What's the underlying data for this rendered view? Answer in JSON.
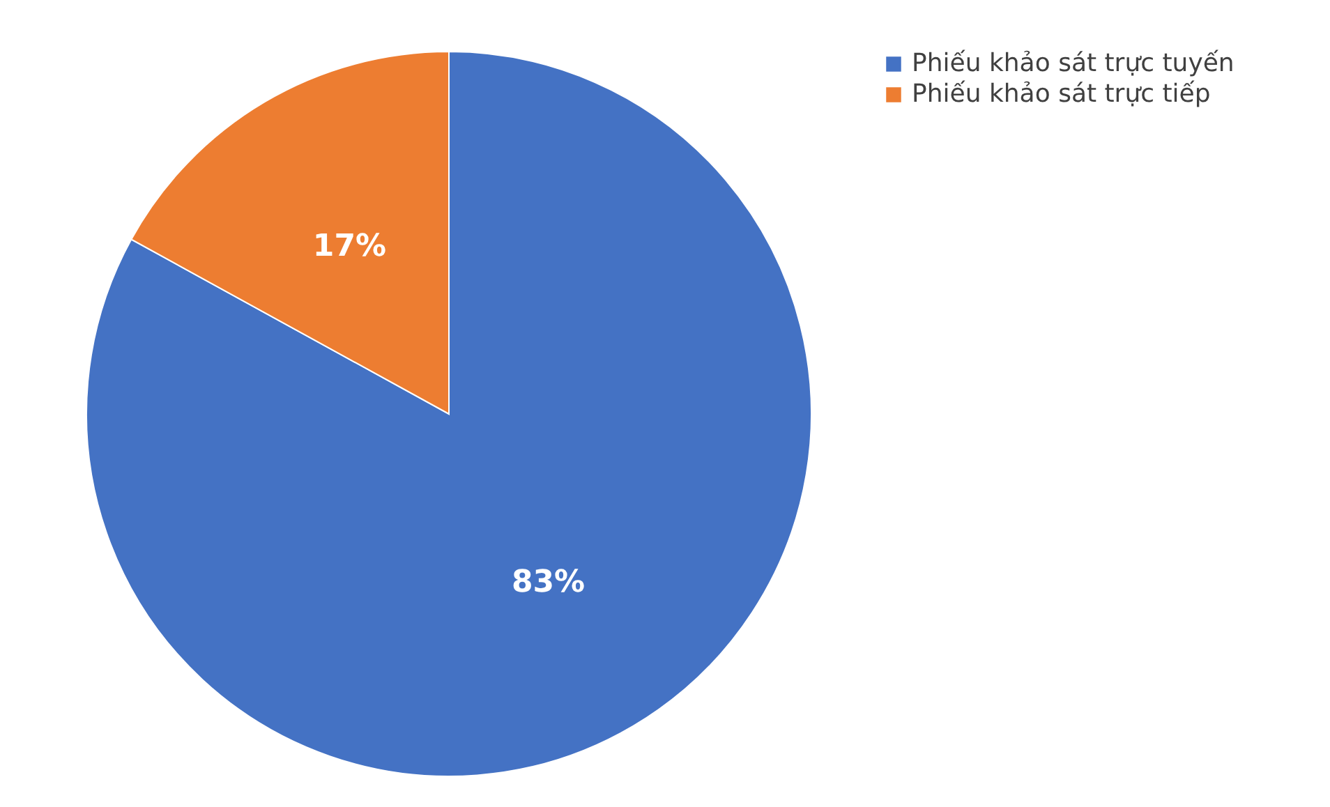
{
  "chart_data": {
    "type": "pie",
    "categories": [
      "Phiếu khảo sát trực tuyến",
      "Phiếu khảo sát trực tiếp"
    ],
    "values": [
      83,
      17
    ],
    "colors": [
      "#4472c4",
      "#ed7d31"
    ],
    "value_labels": [
      "83%",
      "17%"
    ],
    "legend": "right"
  }
}
